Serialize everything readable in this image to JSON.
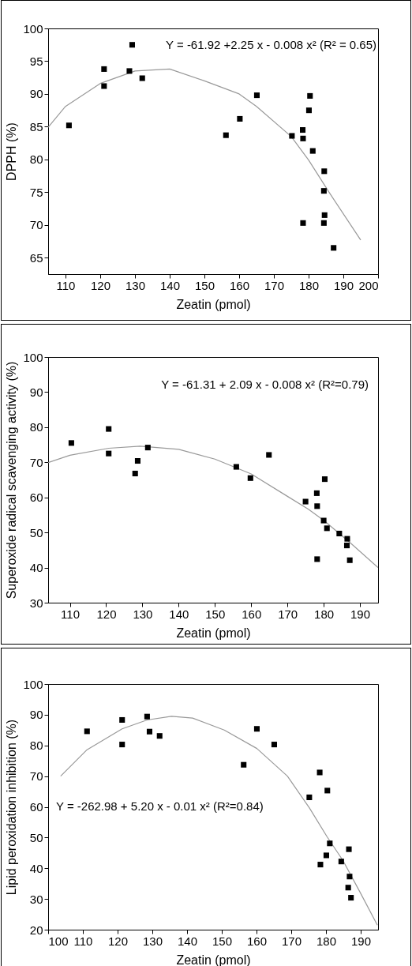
{
  "chart_data": [
    {
      "type": "scatter",
      "xlabel": "Zeatin (pmol)",
      "ylabel": "DPPH (%)",
      "xlim": [
        105,
        200
      ],
      "ylim": [
        62.5,
        100
      ],
      "xticks": [
        110,
        120,
        130,
        140,
        150,
        160,
        170,
        180,
        190,
        200
      ],
      "yticks": [
        65,
        70,
        75,
        80,
        85,
        90,
        95,
        100
      ],
      "grid": false,
      "annotations": [
        "Y = -61.92 +2.25 x - 0.008 x² (R² = 0.65)"
      ],
      "series": [
        {
          "color": "#000000",
          "marker": "square",
          "x": [
            111.0,
            121.1,
            121.1,
            128.4,
            129.2,
            132.1,
            156.2,
            160.2,
            165.1,
            175.2,
            178.3,
            178.4,
            178.4,
            180.1,
            180.4,
            181.2,
            184.4,
            184.5,
            184.4,
            184.6,
            187.2
          ],
          "values": [
            85.2,
            93.8,
            91.2,
            93.5,
            97.5,
            92.4,
            83.7,
            86.2,
            89.8,
            83.6,
            84.5,
            83.2,
            70.3,
            87.5,
            89.7,
            81.3,
            70.3,
            78.2,
            75.2,
            71.5,
            66.5
          ]
        },
        {
          "type": "line",
          "color": "#999999",
          "marker": "none",
          "x": [
            105,
            110,
            120,
            130,
            140,
            150,
            160,
            165,
            175,
            180,
            186,
            195
          ],
          "values": [
            84.9,
            88.1,
            91.6,
            93.5,
            93.8,
            92.0,
            90.0,
            88.1,
            83.5,
            79.9,
            74.9,
            67.7
          ]
        }
      ]
    },
    {
      "type": "scatter",
      "xlabel": "Zeatin (pmol)",
      "ylabel": "Superoxide radical scavenging activity (%)",
      "xlim": [
        104,
        195
      ],
      "ylim": [
        30,
        100
      ],
      "xticks": [
        110,
        120,
        130,
        140,
        150,
        160,
        170,
        180,
        190
      ],
      "yticks": [
        30,
        40,
        50,
        60,
        70,
        80,
        90,
        100
      ],
      "grid": false,
      "annotations": [
        "Y = -61.31 + 2.09 x - 0.008 x² (R²=0.79)"
      ],
      "series": [
        {
          "color": "#000000",
          "marker": "square",
          "x": [
            110.4,
            120.7,
            120.7,
            128.0,
            128.7,
            131.5,
            155.9,
            159.8,
            164.9,
            175.0,
            178.1,
            178.2,
            178.2,
            180.0,
            180.3,
            180.9,
            184.3,
            186.5,
            186.4,
            187.2
          ],
          "values": [
            75.5,
            79.5,
            72.5,
            66.8,
            70.4,
            74.2,
            68.7,
            65.5,
            72.1,
            58.8,
            61.2,
            57.5,
            42.4,
            53.4,
            65.2,
            51.2,
            49.7,
            48.2,
            46.3,
            42.1
          ]
        },
        {
          "type": "line",
          "color": "#999999",
          "marker": "none",
          "x": [
            104,
            110,
            120.7,
            129.4,
            140,
            150,
            160,
            170,
            175.8,
            180.2,
            187.4,
            195
          ],
          "values": [
            69.9,
            72.0,
            74.0,
            74.6,
            73.7,
            70.9,
            66.7,
            60.3,
            56.6,
            53.3,
            47.0,
            40.0
          ]
        }
      ]
    },
    {
      "type": "scatter",
      "xlabel": "Zeatin (pmol)",
      "ylabel": "Lipid peroxidation inhibition (%)",
      "xlim": [
        100,
        195
      ],
      "ylim": [
        20,
        100
      ],
      "xticks": [
        100,
        110,
        120,
        130,
        140,
        150,
        160,
        170,
        180,
        190
      ],
      "yticks": [
        20,
        30,
        40,
        50,
        60,
        70,
        80,
        90,
        100
      ],
      "grid": false,
      "annotations": [
        "Y = -262.98 + 5.20 x - 0.01 x² (R²=0.84)"
      ],
      "series": [
        {
          "color": "#000000",
          "marker": "square",
          "x": [
            111.2,
            121.3,
            121.3,
            128.5,
            129.2,
            132.1,
            156.3,
            160.1,
            165.1,
            175.2,
            178.2,
            178.4,
            180.1,
            180.4,
            181.1,
            184.4,
            186.6,
            186.8,
            186.4,
            187.2
          ],
          "values": [
            84.6,
            88.3,
            80.3,
            89.4,
            84.5,
            83.1,
            73.7,
            85.4,
            80.3,
            63.1,
            71.2,
            41.2,
            44.2,
            65.3,
            48.1,
            42.2,
            46.2,
            37.3,
            33.7,
            30.4
          ]
        },
        {
          "type": "line",
          "color": "#999999",
          "marker": "none",
          "x": [
            103.6,
            111.2,
            121.3,
            128.5,
            135.5,
            141.6,
            150.7,
            160.1,
            168.9,
            175.2,
            180.3,
            184.9,
            190,
            194.8
          ],
          "values": [
            70.0,
            78.6,
            85.4,
            88.3,
            89.5,
            88.9,
            85.0,
            79.0,
            70.0,
            59.7,
            50.3,
            42.5,
            31.8,
            21.5
          ]
        }
      ]
    }
  ]
}
